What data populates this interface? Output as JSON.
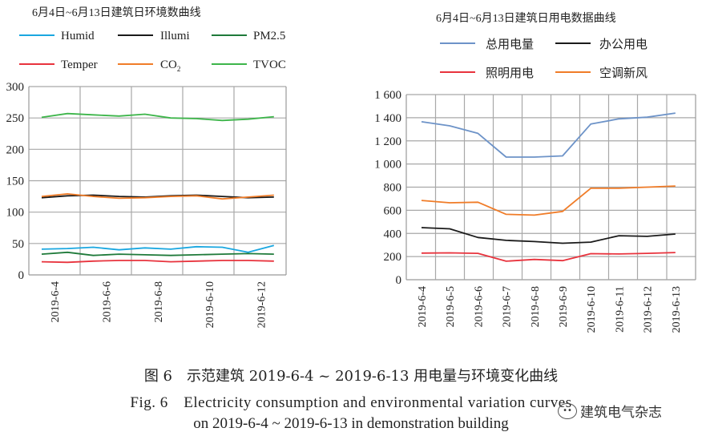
{
  "chart_data": [
    {
      "type": "line",
      "title": "6月4日~6月13日建筑日环境数曲线",
      "xlabel": "",
      "ylabel": "",
      "ylim": [
        0,
        300
      ],
      "yticks": [
        0,
        50,
        100,
        150,
        200,
        250,
        300
      ],
      "ytick_labels": [
        "0",
        "50",
        "100",
        "150",
        "200",
        "250",
        "300"
      ],
      "x": [
        "2019-6-4",
        "2019-6-5",
        "2019-6-6",
        "2019-6-7",
        "2019-6-8",
        "2019-6-9",
        "2019-6-10",
        "2019-6-11",
        "2019-6-12",
        "2019-6-13"
      ],
      "xtick_labels": [
        "2019-6-4",
        "2019-6-6",
        "2019-6-8",
        "2019-6-10",
        "2019-6-12"
      ],
      "grid": true,
      "legend_position": "top",
      "series": [
        {
          "name": "Humid",
          "color": "#1aa7e0",
          "values": [
            41,
            42,
            44,
            40,
            43,
            41,
            45,
            44,
            36,
            47
          ]
        },
        {
          "name": "Illumi",
          "color": "#1a1a1a",
          "values": [
            123,
            126,
            127,
            125,
            124,
            126,
            127,
            125,
            123,
            124
          ]
        },
        {
          "name": "PM2.5",
          "color": "#1f7a3a",
          "values": [
            33,
            36,
            31,
            33,
            32,
            31,
            32,
            33,
            34,
            33
          ]
        },
        {
          "name": "Temper",
          "color": "#e8333d",
          "values": [
            21,
            20,
            22,
            23,
            23,
            21,
            22,
            23,
            23,
            22
          ]
        },
        {
          "name": "CO2",
          "color": "#f07c28",
          "values": [
            125,
            129,
            125,
            122,
            123,
            125,
            126,
            121,
            124,
            127
          ]
        },
        {
          "name": "TVOC",
          "color": "#3db54a",
          "values": [
            251,
            257,
            255,
            253,
            256,
            250,
            249,
            246,
            248,
            252
          ]
        }
      ]
    },
    {
      "type": "line",
      "title": "6月4日~6月13日建筑日用电数据曲线",
      "xlabel": "",
      "ylabel": "",
      "ylim": [
        0,
        1600
      ],
      "yticks": [
        0,
        200,
        400,
        600,
        800,
        1000,
        1200,
        1400,
        1600
      ],
      "ytick_labels": [
        "0",
        "200",
        "400",
        "600",
        "800",
        "1 000",
        "1 200",
        "1 400",
        "1 600"
      ],
      "x": [
        "2019-6-4",
        "2019-6-5",
        "2019-6-6",
        "2019-6-7",
        "2019-6-8",
        "2019-6-9",
        "2019-6-10",
        "2019-6-11",
        "2019-6-12",
        "2019-6-13"
      ],
      "xtick_labels": [
        "2019-6-4",
        "2019-6-5",
        "2019-6-6",
        "2019-6-7",
        "2019-6-8",
        "2019-6-9",
        "2019-6-10",
        "2019-6-11",
        "2019-6-12",
        "2019-6-13"
      ],
      "grid": true,
      "legend_position": "top",
      "series": [
        {
          "name": "总用电量",
          "color": "#6d93c8",
          "values": [
            1365,
            1330,
            1265,
            1060,
            1060,
            1070,
            1345,
            1390,
            1405,
            1440
          ]
        },
        {
          "name": "办公用电",
          "color": "#1a1a1a",
          "values": [
            450,
            440,
            365,
            340,
            330,
            315,
            325,
            380,
            375,
            395
          ]
        },
        {
          "name": "照明用电",
          "color": "#e8333d",
          "values": [
            230,
            232,
            228,
            160,
            175,
            165,
            225,
            222,
            228,
            235
          ]
        },
        {
          "name": "空调新风",
          "color": "#f07c28",
          "values": [
            685,
            665,
            670,
            565,
            558,
            590,
            790,
            790,
            800,
            810
          ]
        }
      ]
    }
  ],
  "legend_left": [
    "Humid",
    "Illumi",
    "PM2.5",
    "Temper",
    "CO",
    "TVOC"
  ],
  "legend_left_co2_sub": "2",
  "caption": {
    "zh": "图 6　示范建筑 2019-6-4 ~ 2019-6-13 用电量与环境变化曲线",
    "en_line1": "Fig. 6　Electricity consumption and environmental variation curves",
    "en_line2": "on 2019-6-4 ~ 2019-6-13 in demonstration building"
  },
  "watermark": {
    "icon": "wechat-icon",
    "text": "建筑电气杂志"
  }
}
